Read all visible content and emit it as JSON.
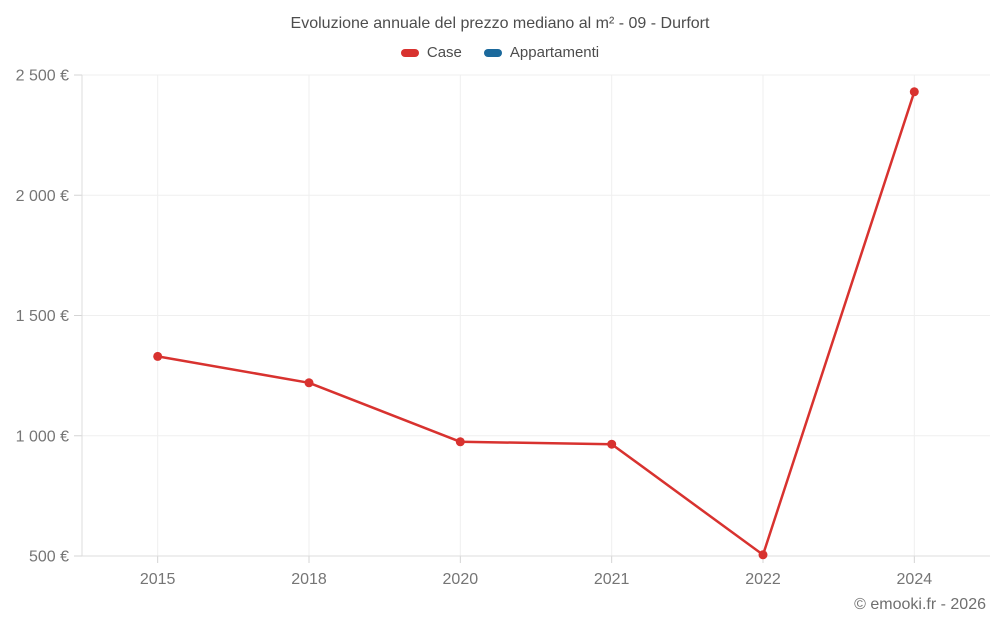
{
  "header": {
    "title": "Evoluzione annuale del prezzo mediano al m² - 09 - Durfort"
  },
  "legend": {
    "items": [
      {
        "label": "Case",
        "color": "#d8322f"
      },
      {
        "label": "Appartamenti",
        "color": "#1b699c"
      }
    ]
  },
  "footer": {
    "credit": "© emooki.fr - 2026"
  },
  "chart_data": {
    "type": "line",
    "title": "Evoluzione annuale del prezzo mediano al m² - 09 - Durfort",
    "categories": [
      "2015",
      "2018",
      "2020",
      "2021",
      "2022",
      "2024"
    ],
    "series": [
      {
        "name": "Case",
        "color": "#d8322f",
        "values": [
          1330,
          1220,
          975,
          965,
          505,
          2430
        ]
      },
      {
        "name": "Appartamenti",
        "color": "#1b699c",
        "values": []
      }
    ],
    "xlabel": "",
    "ylabel": "",
    "ylim": [
      500,
      2500
    ],
    "yticks": [
      500,
      1000,
      1500,
      2000,
      2500
    ],
    "ytick_labels": [
      "500 €",
      "1 000 €",
      "1 500 €",
      "2 000 €",
      "2 500 €"
    ],
    "grid": true,
    "legend_position": "top",
    "colors": {
      "grid_line": "#efefef",
      "axis_line": "#dcdcdc",
      "tick_mark": "#d4d4d4",
      "tick_text": "#757575",
      "title_text": "#4d4d4d"
    }
  }
}
